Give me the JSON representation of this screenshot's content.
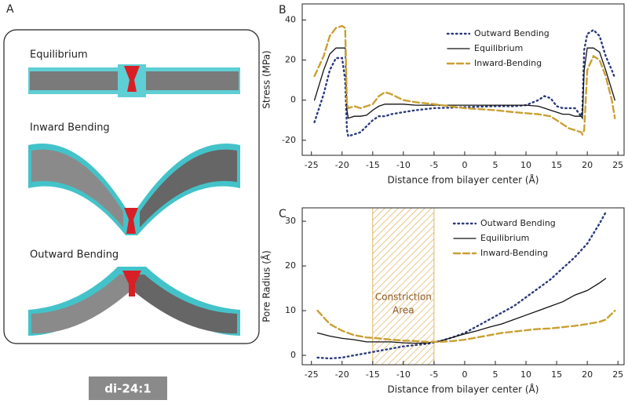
{
  "panel_a": {
    "label": "A",
    "titles": [
      "Equilibrium",
      "Inward Bending",
      "Outward Bending"
    ],
    "caption": "di-24:1"
  },
  "chart_data": [
    {
      "type": "line",
      "panel_label": "B",
      "xlabel": "Distance from bilayer center (Å)",
      "ylabel": "Stress (MPa)",
      "xlim": [
        -26.5,
        26
      ],
      "ylim": [
        -27.5,
        48
      ],
      "xticks": [
        -25,
        -20,
        -15,
        -10,
        -5,
        0,
        5,
        10,
        15,
        20,
        25
      ],
      "yticks": [
        -20,
        0,
        20,
        40
      ],
      "x": [
        -24.5,
        -23,
        -22,
        -21,
        -20,
        -19.5,
        -19.2,
        -19,
        -18,
        -17,
        -16,
        -15,
        -14,
        -13,
        -12,
        -10,
        -8,
        -5,
        0,
        5,
        8,
        10,
        12,
        13,
        14,
        15,
        16,
        17,
        18,
        19,
        19.2,
        19.5,
        20,
        21,
        22,
        23,
        24,
        24.5
      ],
      "series": [
        {
          "name": "Outward Bending",
          "color": "#2b3a7a",
          "dash": "dotted",
          "values": [
            -11,
            3,
            15,
            21,
            21,
            10,
            -15,
            -18,
            -17,
            -16,
            -13,
            -10,
            -8,
            -8,
            -7,
            -6,
            -5,
            -4,
            -3.5,
            -3,
            -3,
            -2.5,
            0,
            2,
            1,
            -3,
            -4,
            -4,
            -4,
            -8,
            -5,
            25,
            33,
            35,
            32,
            22,
            15,
            11
          ]
        },
        {
          "name": "Equilibrium",
          "color": "#111111",
          "dash": "solid",
          "values": [
            0,
            15,
            23,
            26,
            26,
            26,
            -5,
            -9,
            -8,
            -8,
            -7.5,
            -5,
            -3,
            -2,
            -2,
            -2,
            -2.5,
            -2.5,
            -2.5,
            -2.5,
            -2.5,
            -2.5,
            -3,
            -4,
            -5,
            -6,
            -7,
            -7,
            -8,
            -8,
            -9,
            15,
            26,
            26,
            24,
            15,
            5,
            0
          ]
        },
        {
          "name": "Inward-Bending",
          "color": "#c9a032",
          "dash": "dashed",
          "values": [
            12,
            22,
            32,
            36,
            37,
            36,
            -2,
            -4,
            -3,
            -4,
            -3,
            -2,
            2,
            4,
            3,
            0,
            -1,
            -2,
            -4,
            -5,
            -6,
            -6.5,
            -7,
            -7.5,
            -8,
            -10,
            -12,
            -14,
            -15,
            -16,
            -17,
            -15,
            15,
            22,
            20,
            12,
            0,
            -9
          ]
        }
      ]
    },
    {
      "type": "line",
      "panel_label": "C",
      "xlabel": "Distance from bilayer center (Å)",
      "ylabel": "Pore Radius (Å)",
      "xlim": [
        -26.5,
        26
      ],
      "ylim": [
        -2.1,
        33
      ],
      "xticks": [
        -25,
        -20,
        -15,
        -10,
        -5,
        0,
        5,
        10,
        15,
        20,
        25
      ],
      "yticks": [
        0,
        10,
        20,
        30
      ],
      "shade": [
        -15,
        -5
      ],
      "shade_color": "#d9a441",
      "annotation": [
        "Constriction",
        "Area"
      ],
      "x": [
        -24,
        -22,
        -20,
        -18,
        -16,
        -14,
        -12,
        -10,
        -8,
        -6,
        -4,
        -2,
        0,
        2,
        4,
        6,
        8,
        10,
        12,
        14,
        16,
        18,
        20,
        22,
        23,
        24.5
      ],
      "series": [
        {
          "name": "Outward Bending",
          "color": "#2b3a7a",
          "dash": "dotted",
          "values": [
            -0.5,
            -0.7,
            -0.5,
            0,
            0.5,
            1,
            1.5,
            2,
            2.3,
            2.6,
            3.2,
            4,
            5,
            6.5,
            8,
            9.5,
            11,
            13,
            15,
            17,
            19.5,
            22,
            25,
            29.5,
            32,
            null
          ]
        },
        {
          "name": "Equilibrium",
          "color": "#111111",
          "dash": "solid",
          "values": [
            5,
            4.3,
            3.8,
            3.5,
            3,
            3,
            3,
            2.8,
            2.7,
            2.8,
            3.2,
            4,
            4.8,
            5.5,
            6.3,
            7,
            8,
            9,
            10,
            11,
            12,
            13.5,
            14.5,
            16.2,
            17.2,
            null
          ]
        },
        {
          "name": "Inward-Bending",
          "color": "#c9a032",
          "dash": "dashed",
          "values": [
            10,
            7,
            5.5,
            4.5,
            4,
            3.8,
            3.5,
            3.3,
            3.2,
            3,
            3,
            3.2,
            3.5,
            4,
            4.5,
            5,
            5.3,
            5.6,
            5.9,
            6,
            6.3,
            6.6,
            7,
            7.5,
            8,
            10
          ]
        }
      ]
    }
  ]
}
